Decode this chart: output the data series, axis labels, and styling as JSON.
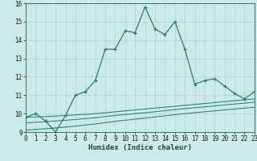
{
  "xlabel": "Humidex (Indice chaleur)",
  "x_values": [
    0,
    1,
    2,
    3,
    4,
    5,
    6,
    7,
    8,
    9,
    10,
    11,
    12,
    13,
    14,
    15,
    16,
    17,
    18,
    19,
    20,
    21,
    22,
    23
  ],
  "line1_y": [
    9.8,
    10.0,
    9.6,
    9.0,
    9.9,
    11.0,
    11.2,
    11.8,
    13.5,
    13.5,
    14.5,
    14.4,
    15.8,
    14.6,
    14.3,
    15.0,
    13.5,
    11.6,
    11.8,
    11.9,
    11.5,
    11.1,
    10.8,
    11.2
  ],
  "line2_y": [
    9.8,
    9.82,
    9.84,
    9.87,
    9.9,
    9.93,
    9.96,
    10.0,
    10.05,
    10.1,
    10.15,
    10.2,
    10.25,
    10.3,
    10.35,
    10.4,
    10.45,
    10.5,
    10.55,
    10.6,
    10.65,
    10.7,
    10.75,
    10.8
  ],
  "line3_y": [
    9.5,
    9.53,
    9.56,
    9.6,
    9.64,
    9.68,
    9.73,
    9.78,
    9.84,
    9.9,
    9.95,
    10.0,
    10.05,
    10.1,
    10.16,
    10.22,
    10.27,
    10.32,
    10.37,
    10.42,
    10.47,
    10.52,
    10.57,
    10.62
  ],
  "line4_y": [
    9.1,
    9.14,
    9.18,
    9.22,
    9.27,
    9.32,
    9.38,
    9.44,
    9.51,
    9.58,
    9.64,
    9.7,
    9.76,
    9.82,
    9.88,
    9.94,
    10.0,
    10.05,
    10.1,
    10.15,
    10.2,
    10.25,
    10.3,
    10.35
  ],
  "line_color": "#2a7d6e",
  "bg_color": "#cceae6",
  "grid_color": "#b0d4cf",
  "ylim": [
    9.0,
    16.0
  ],
  "yticks": [
    9,
    10,
    11,
    12,
    13,
    14,
    15,
    16
  ],
  "xticks": [
    0,
    1,
    2,
    3,
    4,
    5,
    6,
    7,
    8,
    9,
    10,
    11,
    12,
    13,
    14,
    15,
    16,
    17,
    18,
    19,
    20,
    21,
    22,
    23
  ],
  "tick_fontsize": 5.5,
  "xlabel_fontsize": 6.5
}
